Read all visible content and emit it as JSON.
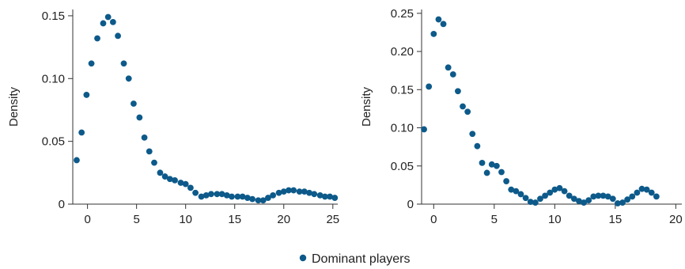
{
  "chart_data": [
    {
      "type": "scatter",
      "ylabel": "Density",
      "xlabel": "",
      "xlim": [
        -1.5,
        25.5
      ],
      "ylim": [
        0,
        0.155
      ],
      "xticks": [
        0,
        5,
        10,
        15,
        20,
        25
      ],
      "xtick_labels": [
        "0",
        "5",
        "10",
        "15",
        "20",
        "25"
      ],
      "yticks": [
        0,
        0.05,
        0.1,
        0.15
      ],
      "ytick_labels": [
        "0",
        "0.05",
        "0.10",
        "0.15"
      ],
      "grid": false,
      "series": [
        {
          "name": "Dominant players",
          "x": [
            -1.1,
            -0.6,
            -0.1,
            0.4,
            1.0,
            1.6,
            2.1,
            2.6,
            3.1,
            3.7,
            4.2,
            4.7,
            5.3,
            5.8,
            6.3,
            6.8,
            7.4,
            7.9,
            8.4,
            8.9,
            9.5,
            10.0,
            10.5,
            11.0,
            11.6,
            12.1,
            12.6,
            13.2,
            13.7,
            14.2,
            14.7,
            15.3,
            15.8,
            16.3,
            16.8,
            17.4,
            17.9,
            18.4,
            18.9,
            19.5,
            20.0,
            20.5,
            21.0,
            21.6,
            22.1,
            22.6,
            23.1,
            23.7,
            24.2,
            24.7,
            25.2
          ],
          "y": [
            0.035,
            0.057,
            0.087,
            0.112,
            0.132,
            0.144,
            0.149,
            0.145,
            0.134,
            0.112,
            0.1,
            0.08,
            0.069,
            0.053,
            0.042,
            0.033,
            0.025,
            0.022,
            0.02,
            0.019,
            0.017,
            0.016,
            0.013,
            0.009,
            0.006,
            0.007,
            0.008,
            0.008,
            0.008,
            0.007,
            0.006,
            0.006,
            0.006,
            0.005,
            0.004,
            0.003,
            0.003,
            0.005,
            0.007,
            0.009,
            0.01,
            0.011,
            0.011,
            0.01,
            0.01,
            0.009,
            0.008,
            0.007,
            0.006,
            0.006,
            0.005
          ],
          "color": "#0d5a8a"
        }
      ]
    },
    {
      "type": "scatter",
      "ylabel": "Density",
      "xlabel": "",
      "xlim": [
        -1.0,
        20.5
      ],
      "ylim": [
        0,
        0.255
      ],
      "xticks": [
        0,
        5,
        10,
        15,
        20
      ],
      "xtick_labels": [
        "0",
        "5",
        "10",
        "15",
        "20"
      ],
      "yticks": [
        0,
        0.05,
        0.1,
        0.15,
        0.2,
        0.25
      ],
      "ytick_labels": [
        "0",
        "0.05",
        "0.10",
        "0.15",
        "0.20",
        "0.25"
      ],
      "grid": false,
      "series": [
        {
          "name": "Dominant players",
          "x": [
            -0.8,
            -0.4,
            0.0,
            0.4,
            0.8,
            1.2,
            1.6,
            2.0,
            2.4,
            2.8,
            3.2,
            3.6,
            4.0,
            4.4,
            4.8,
            5.2,
            5.6,
            6.0,
            6.4,
            6.8,
            7.2,
            7.6,
            8.0,
            8.4,
            8.8,
            9.2,
            9.6,
            10.0,
            10.4,
            10.8,
            11.2,
            11.6,
            12.0,
            12.4,
            12.8,
            13.2,
            13.6,
            14.0,
            14.4,
            14.8,
            15.2,
            15.6,
            16.0,
            16.4,
            16.8,
            17.2,
            17.6,
            18.0,
            18.4
          ],
          "y": [
            0.098,
            0.154,
            0.223,
            0.242,
            0.236,
            0.179,
            0.17,
            0.148,
            0.128,
            0.121,
            0.092,
            0.076,
            0.054,
            0.041,
            0.052,
            0.05,
            0.042,
            0.03,
            0.019,
            0.017,
            0.013,
            0.008,
            0.003,
            0.002,
            0.007,
            0.011,
            0.015,
            0.019,
            0.021,
            0.017,
            0.011,
            0.007,
            0.004,
            0.002,
            0.005,
            0.01,
            0.011,
            0.011,
            0.01,
            0.007,
            0.001,
            0.002,
            0.006,
            0.01,
            0.015,
            0.02,
            0.019,
            0.015,
            0.01
          ],
          "color": "#0d5a8a"
        }
      ]
    }
  ],
  "legend": {
    "label": "Dominant players",
    "placement": "bottom-center",
    "color": "#0d5a8a"
  }
}
